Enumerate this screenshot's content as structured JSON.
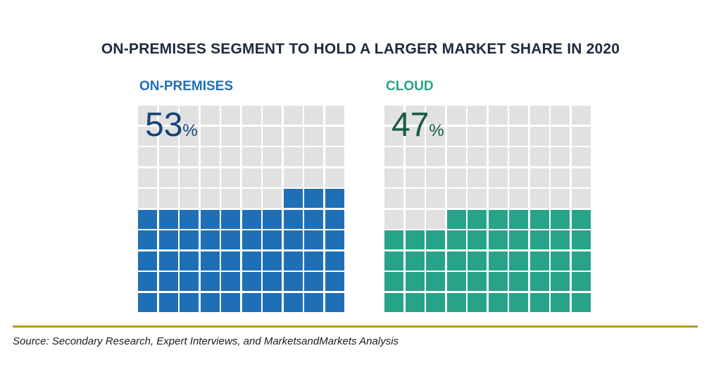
{
  "title": "ON-PREMISES SEGMENT TO HOLD A LARGER MARKET SHARE IN 2020",
  "source": "Source: Secondary Research, Expert Interviews, and MarketsandMarkets Analysis",
  "colors": {
    "on_premises": "#1f6fb6",
    "cloud": "#26a389",
    "empty": "#e1e1e1",
    "rule": "#b99628",
    "title": "#1f2a3c"
  },
  "chart_data": {
    "type": "waffle",
    "title": "ON-PREMISES SEGMENT TO HOLD A LARGER MARKET SHARE IN 2020",
    "grid": {
      "rows": 10,
      "cols": 10
    },
    "series": [
      {
        "name": "ON-PREMISES",
        "value": 53,
        "unit": "%"
      },
      {
        "name": "CLOUD",
        "value": 47,
        "unit": "%"
      }
    ]
  }
}
